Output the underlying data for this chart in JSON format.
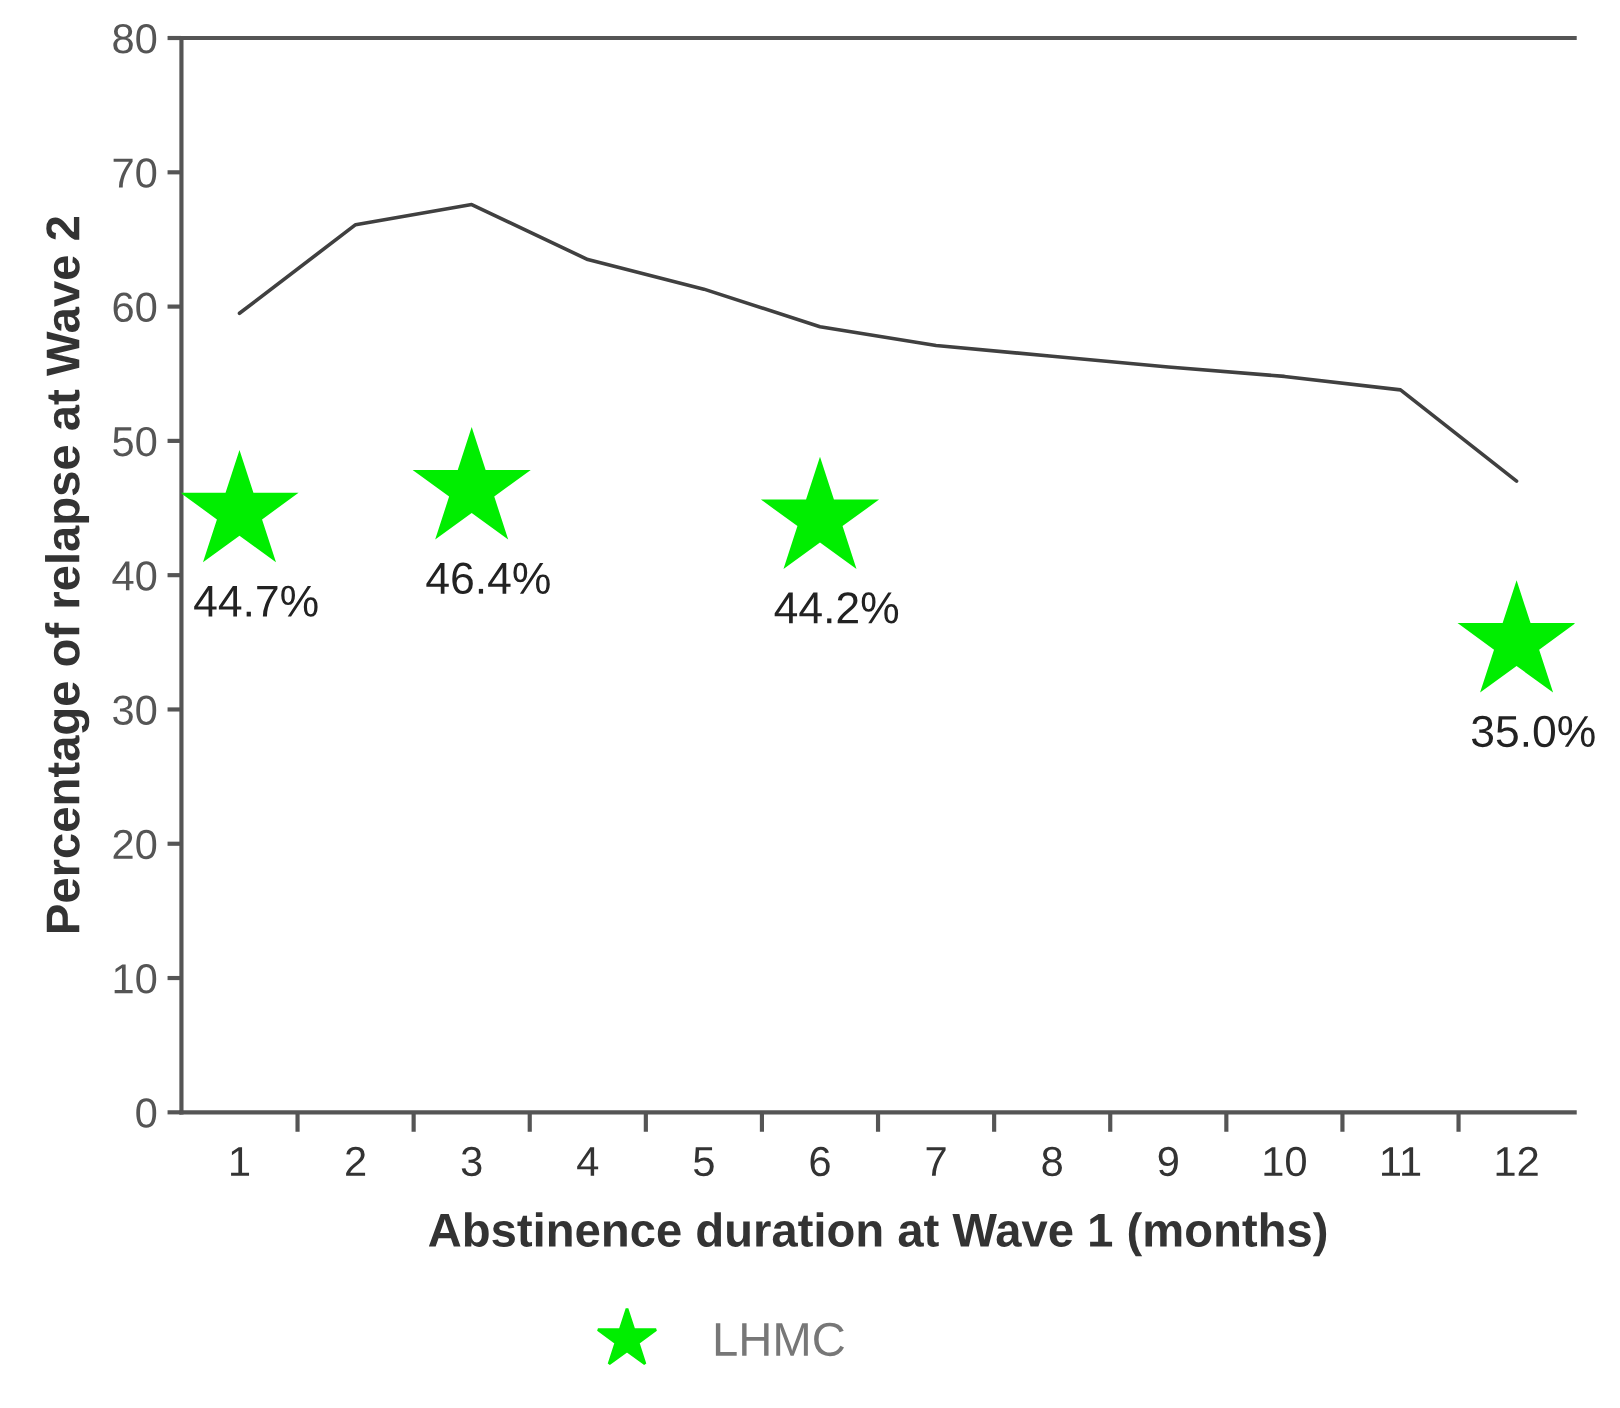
{
  "chart_data": {
    "type": "line",
    "xlabel": "Abstinence duration at Wave 1 (months)",
    "ylabel": "Percentage of relapse at Wave 2",
    "categories": [
      "1",
      "2",
      "3",
      "4",
      "5",
      "6",
      "7",
      "8",
      "9",
      "10",
      "11",
      "12"
    ],
    "series": [
      {
        "color": "#404040",
        "marker": "none",
        "line_style": "solid",
        "values": [
          59.5,
          66.1,
          67.6,
          63.5,
          61.3,
          58.5,
          57.1,
          56.3,
          55.5,
          54.8,
          53.8,
          47.0
        ]
      },
      {
        "type": "scatter",
        "name": "LHMC",
        "color": "#00ee00",
        "marker": "star",
        "x": [
          "1",
          "3",
          "6",
          "12"
        ],
        "values": [
          44.7,
          46.4,
          44.2,
          35.0
        ],
        "value_labels": [
          "44.7%",
          "46.4%",
          "44.2%",
          "35.0%"
        ]
      }
    ],
    "ylim": [
      0,
      80
    ],
    "yticks": [
      0,
      10,
      20,
      30,
      40,
      50,
      60,
      70,
      80
    ],
    "grid": false,
    "legend": "bottom"
  }
}
